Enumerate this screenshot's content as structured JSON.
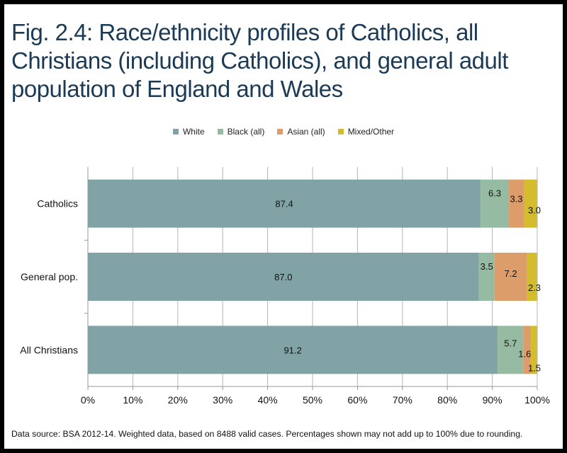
{
  "chart_data": {
    "type": "bar",
    "orientation": "horizontal",
    "stacked": true,
    "title": "Fig. 2.4: Race/ethnicity profiles of Catholics, all Christians (including Catholics), and general adult population of England and Wales",
    "categories": [
      "Catholics",
      "General pop.",
      "All Christians"
    ],
    "series": [
      {
        "name": "White",
        "color": "#82a3a5",
        "values": [
          87.4,
          87.0,
          91.2
        ],
        "labels": [
          "87.4",
          "87.0",
          "91.2"
        ]
      },
      {
        "name": "Black (all)",
        "color": "#95bca2",
        "values": [
          6.3,
          3.5,
          5.7
        ],
        "labels": [
          "6.3",
          "3.5",
          "5.7"
        ]
      },
      {
        "name": "Asian (all)",
        "color": "#dd9d6a",
        "values": [
          3.3,
          7.2,
          1.6
        ],
        "labels": [
          "3.3",
          "7.2",
          "1.6"
        ]
      },
      {
        "name": "Mixed/Other",
        "color": "#d3bd2e",
        "values": [
          3.0,
          2.3,
          1.5
        ],
        "labels": [
          "3.0",
          "2.3",
          "1.5"
        ]
      }
    ],
    "xlim": [
      0,
      100
    ],
    "xticks": [
      "0%",
      "10%",
      "20%",
      "30%",
      "40%",
      "50%",
      "60%",
      "70%",
      "80%",
      "90%",
      "100%"
    ],
    "xlabel": "",
    "ylabel": "",
    "grid": true,
    "legend_position": "top-center",
    "footnote": "Data source: BSA 2012-14. Weighted data, based on 8488 valid cases. Percentages shown may not add up to 100% due to rounding."
  }
}
